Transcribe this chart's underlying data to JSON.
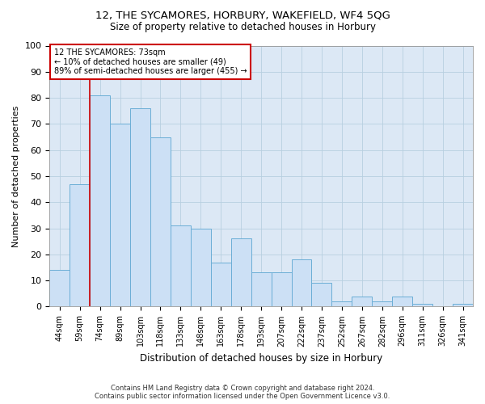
{
  "title1": "12, THE SYCAMORES, HORBURY, WAKEFIELD, WF4 5QG",
  "title2": "Size of property relative to detached houses in Horbury",
  "xlabel": "Distribution of detached houses by size in Horbury",
  "ylabel": "Number of detached properties",
  "categories": [
    "44sqm",
    "59sqm",
    "74sqm",
    "89sqm",
    "103sqm",
    "118sqm",
    "133sqm",
    "148sqm",
    "163sqm",
    "178sqm",
    "193sqm",
    "207sqm",
    "222sqm",
    "237sqm",
    "252sqm",
    "267sqm",
    "282sqm",
    "296sqm",
    "311sqm",
    "326sqm",
    "341sqm"
  ],
  "values": [
    14,
    47,
    81,
    70,
    76,
    65,
    31,
    30,
    17,
    26,
    13,
    13,
    18,
    9,
    2,
    4,
    2,
    4,
    1,
    0,
    1
  ],
  "bar_color": "#cce0f5",
  "bar_edge_color": "#6baed6",
  "annotation_line_label": "12 THE SYCAMORES: 73sqm",
  "annotation_text_line2": "← 10% of detached houses are smaller (49)",
  "annotation_text_line3": "89% of semi-detached houses are larger (455) →",
  "annotation_box_color": "#ffffff",
  "annotation_box_edge_color": "#cc0000",
  "vline_color": "#cc0000",
  "grid_color": "#b8cfe0",
  "background_color": "#dce8f5",
  "fig_background_color": "#ffffff",
  "footer_line1": "Contains HM Land Registry data © Crown copyright and database right 2024.",
  "footer_line2": "Contains public sector information licensed under the Open Government Licence v3.0.",
  "ylim": [
    0,
    100
  ],
  "yticks": [
    0,
    10,
    20,
    30,
    40,
    50,
    60,
    70,
    80,
    90,
    100
  ]
}
